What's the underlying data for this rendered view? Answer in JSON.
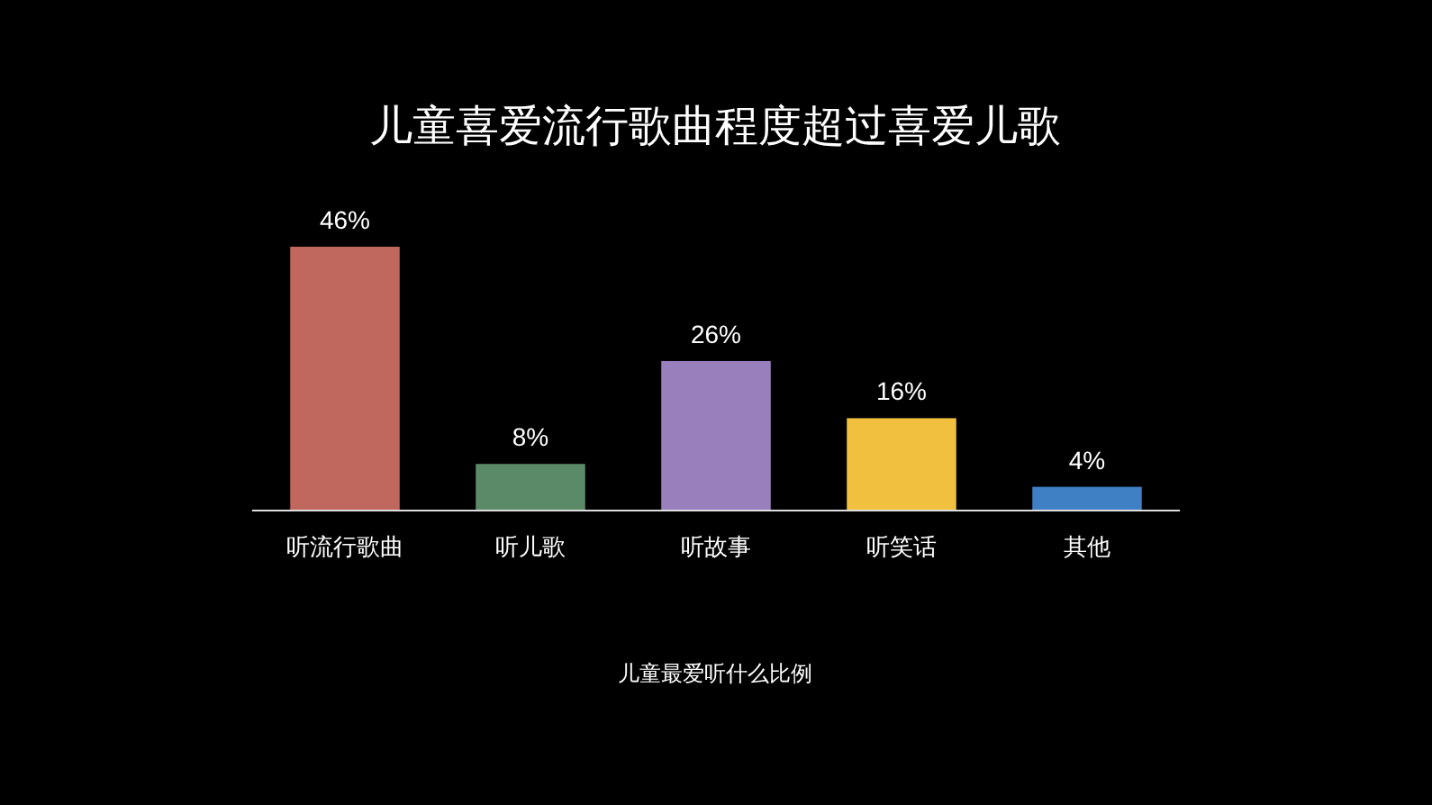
{
  "chart_data": {
    "type": "bar",
    "title": "儿童喜爱流行歌曲程度超过喜爱儿歌",
    "xlabel": "儿童最爱听什么比例",
    "categories": [
      "听流行歌曲",
      "听儿歌",
      "听故事",
      "听笑话",
      "其他"
    ],
    "values": [
      46,
      8,
      26,
      16,
      4
    ],
    "colors": [
      "#c0675e",
      "#5b8a68",
      "#9a7fbd",
      "#f1c03e",
      "#3f7fc3"
    ],
    "value_labels": [
      "46%",
      "8%",
      "26%",
      "16%",
      "4%"
    ]
  }
}
